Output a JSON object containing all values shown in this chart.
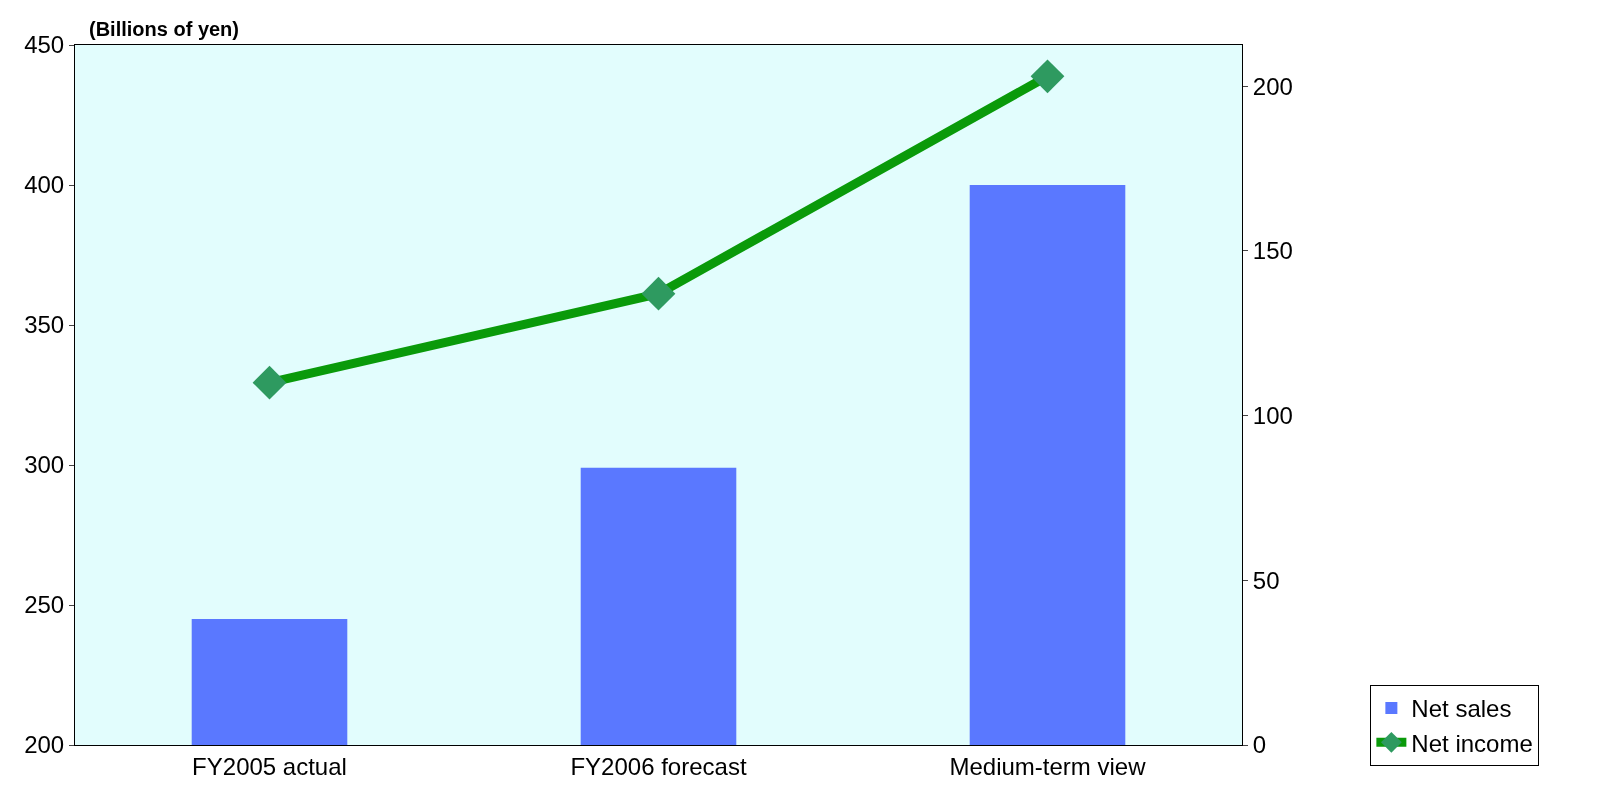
{
  "chart_data": {
    "type": "bar",
    "ylabel": "(Billions of yen)",
    "categories": [
      "FY2005 actual",
      "FY2006 forecast",
      "Medium-term view"
    ],
    "series": [
      {
        "name": "Net sales",
        "color": "#5a78ff",
        "values": [
          245,
          299,
          400
        ]
      },
      {
        "name": "Net income",
        "type": "line",
        "axis": "y2",
        "color": "#0a9a0a",
        "marker": "diamond",
        "values": [
          110,
          137,
          203
        ]
      }
    ],
    "ylim": [
      200,
      450
    ],
    "yticks": [
      200,
      250,
      300,
      350,
      400,
      450
    ],
    "y2lim": [
      0,
      212.5
    ],
    "y2ticks": [
      0,
      50,
      100,
      150,
      200
    ],
    "grid": false,
    "legend": "bottom right"
  }
}
